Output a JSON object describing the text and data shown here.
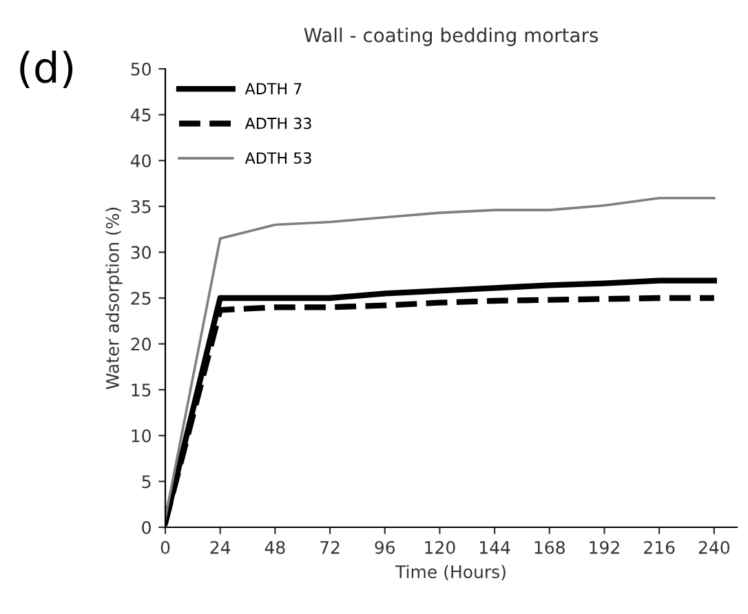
{
  "chart_data": {
    "type": "line",
    "title": "Wall - coating bedding mortars",
    "xlabel": "Time (Hours)",
    "ylabel": "Water adsorption (%)",
    "annotations": [
      "(d)"
    ],
    "x": [
      0,
      24,
      48,
      72,
      96,
      120,
      144,
      168,
      192,
      216,
      240
    ],
    "series": [
      {
        "name": "ADTH 7",
        "color": "#000000",
        "line_style": "solid",
        "values": [
          0.5,
          25,
          25,
          25,
          25.5,
          25.8,
          26.1,
          26.4,
          26.6,
          26.9,
          26.9
        ]
      },
      {
        "name": "ADTH 33",
        "color": "#000000",
        "line_style": "dashed",
        "values": [
          0.5,
          23.7,
          24,
          24,
          24.2,
          24.5,
          24.7,
          24.8,
          24.9,
          25,
          25
        ]
      },
      {
        "name": "ADTH 53",
        "color": "#7f7f7f",
        "line_style": "solid",
        "values": [
          1,
          31.5,
          33,
          33.3,
          33.8,
          34.3,
          34.6,
          34.6,
          35.1,
          35.9,
          35.9
        ]
      }
    ],
    "xlim": [
      0,
      250
    ],
    "xticks": [
      0,
      24,
      48,
      72,
      96,
      120,
      144,
      168,
      192,
      216,
      240
    ],
    "ylim": [
      0,
      50
    ],
    "yticks": [
      0,
      5,
      10,
      15,
      20,
      25,
      30,
      35,
      40,
      45,
      50
    ],
    "grid": false,
    "legend": "top left",
    "marker": "none"
  }
}
